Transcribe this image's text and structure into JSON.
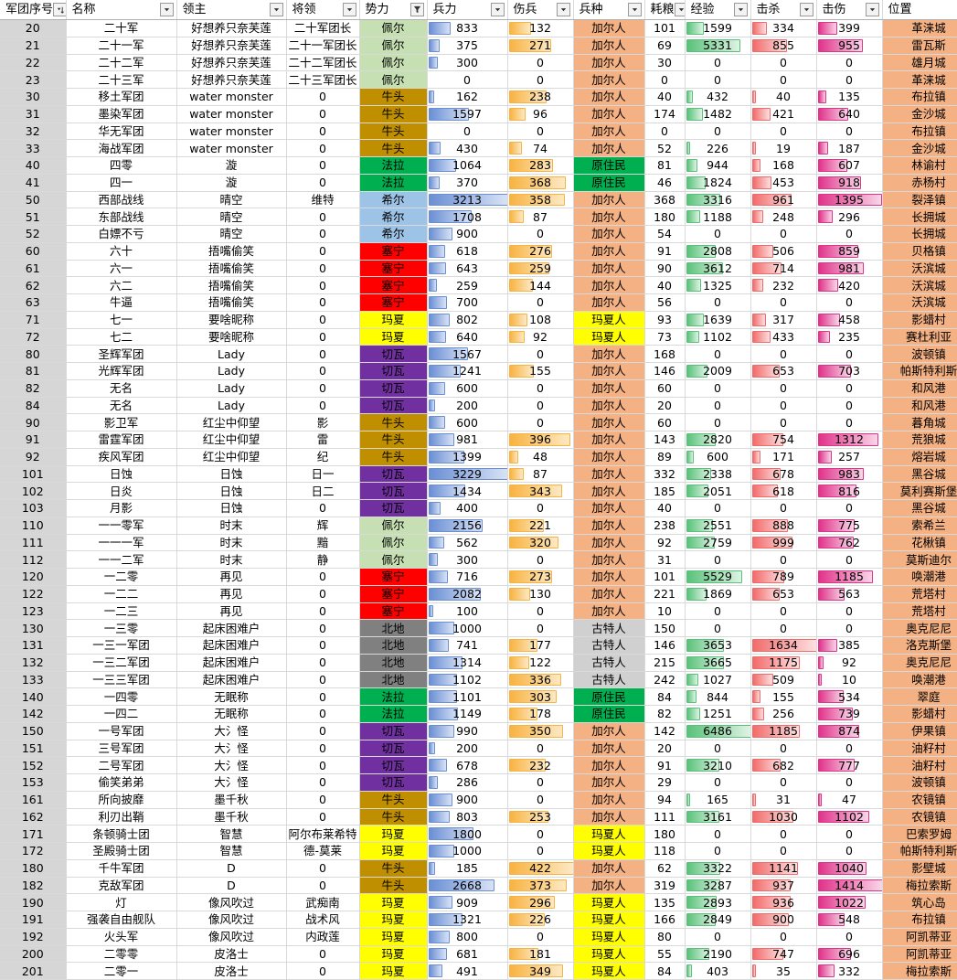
{
  "headers": [
    {
      "label": "军团序号",
      "filter": "sort"
    },
    {
      "label": "名称",
      "filter": "dropdown"
    },
    {
      "label": "领主",
      "filter": "dropdown"
    },
    {
      "label": "将领",
      "filter": "dropdown"
    },
    {
      "label": "势力",
      "filter": "funnel"
    },
    {
      "label": "兵力",
      "filter": "dropdown"
    },
    {
      "label": "伤兵",
      "filter": "dropdown"
    },
    {
      "label": "兵种",
      "filter": "dropdown"
    },
    {
      "label": "耗粮",
      "filter": "dropdown"
    },
    {
      "label": "经验",
      "filter": "dropdown"
    },
    {
      "label": "击杀",
      "filter": "dropdown"
    },
    {
      "label": "击伤",
      "filter": "dropdown"
    },
    {
      "label": "位置",
      "filter": "dropdown"
    }
  ],
  "colors": {
    "faction": {
      "佩尔": "#c6e0b4",
      "牛头": "#bf8f00",
      "法拉": "#00b050",
      "希尔": "#9dc3e6",
      "塞宁": "#ff0000",
      "玛夏": "#ffff00",
      "切瓦": "#7030a0",
      "北地": "#808080"
    },
    "troop": {
      "加尔人": "#f4b183",
      "原住民": "#00b050",
      "玛夏人": "#ffff00",
      "古特人": "#d0d0d0"
    }
  },
  "max": {
    "troops": 3229,
    "wounded": 422,
    "exp": 6486,
    "kills": 1634,
    "injured": 1414
  },
  "rows": [
    [
      "20",
      "二十军",
      "好想养只奈芙莲",
      "二十军团长",
      "佩尔",
      "833",
      "132",
      "加尔人",
      "101",
      "1599",
      "334",
      "399",
      "革涞城"
    ],
    [
      "21",
      "二十一军",
      "好想养只奈芙莲",
      "二十一军团长",
      "佩尔",
      "375",
      "271",
      "加尔人",
      "69",
      "5331",
      "855",
      "955",
      "雷瓦斯"
    ],
    [
      "22",
      "二十二军",
      "好想养只奈芙莲",
      "二十二军团长",
      "佩尔",
      "300",
      "0",
      "加尔人",
      "30",
      "0",
      "0",
      "0",
      "雄月城"
    ],
    [
      "23",
      "二十三军",
      "好想养只奈芙莲",
      "二十三军团长",
      "佩尔",
      "0",
      "0",
      "加尔人",
      "0",
      "0",
      "0",
      "0",
      "革涞城"
    ],
    [
      "30",
      "移土军团",
      "water monster",
      "0",
      "牛头",
      "162",
      "238",
      "加尔人",
      "40",
      "432",
      "40",
      "135",
      "布拉镇"
    ],
    [
      "31",
      "墨染军团",
      "water monster",
      "0",
      "牛头",
      "1597",
      "96",
      "加尔人",
      "174",
      "1482",
      "421",
      "640",
      "金沙城"
    ],
    [
      "32",
      "华无军团",
      "water monster",
      "0",
      "牛头",
      "0",
      "0",
      "加尔人",
      "0",
      "0",
      "0",
      "0",
      "布拉镇"
    ],
    [
      "33",
      "海战军团",
      "water monster",
      "0",
      "牛头",
      "430",
      "74",
      "加尔人",
      "52",
      "226",
      "19",
      "187",
      "金沙城"
    ],
    [
      "40",
      "四零",
      "漩",
      "0",
      "法拉",
      "1064",
      "283",
      "原住民",
      "81",
      "944",
      "168",
      "607",
      "林谕村"
    ],
    [
      "41",
      "四一",
      "漩",
      "0",
      "法拉",
      "370",
      "368",
      "原住民",
      "46",
      "1824",
      "453",
      "918",
      "赤杨村"
    ],
    [
      "50",
      "西部战线",
      "晴空",
      "维特",
      "希尔",
      "3213",
      "358",
      "加尔人",
      "368",
      "3316",
      "961",
      "1395",
      "裂泽镇"
    ],
    [
      "51",
      "东部战线",
      "晴空",
      "0",
      "希尔",
      "1708",
      "87",
      "加尔人",
      "180",
      "1188",
      "248",
      "296",
      "长拥城"
    ],
    [
      "52",
      "白嫖不亏",
      "晴空",
      "0",
      "希尔",
      "900",
      "0",
      "加尔人",
      "54",
      "0",
      "0",
      "0",
      "长拥城"
    ],
    [
      "60",
      "六十",
      "捂嘴偷笑",
      "0",
      "塞宁",
      "618",
      "276",
      "加尔人",
      "91",
      "2808",
      "506",
      "859",
      "贝格镇"
    ],
    [
      "61",
      "六一",
      "捂嘴偷笑",
      "0",
      "塞宁",
      "643",
      "259",
      "加尔人",
      "90",
      "3612",
      "714",
      "981",
      "沃滨城"
    ],
    [
      "62",
      "六二",
      "捂嘴偷笑",
      "0",
      "塞宁",
      "259",
      "144",
      "加尔人",
      "40",
      "1325",
      "232",
      "420",
      "沃滨城"
    ],
    [
      "63",
      "牛逼",
      "捂嘴偷笑",
      "0",
      "塞宁",
      "700",
      "0",
      "加尔人",
      "56",
      "0",
      "0",
      "0",
      "沃滨城"
    ],
    [
      "71",
      "七一",
      "要啥昵称",
      "0",
      "玛夏",
      "802",
      "108",
      "玛夏人",
      "93",
      "1639",
      "317",
      "458",
      "影蜡村"
    ],
    [
      "72",
      "七二",
      "要啥昵称",
      "0",
      "玛夏",
      "640",
      "92",
      "玛夏人",
      "73",
      "1102",
      "433",
      "235",
      "赛杜利亚"
    ],
    [
      "80",
      "圣辉军团",
      "Lady",
      "0",
      "切瓦",
      "1567",
      "0",
      "加尔人",
      "168",
      "0",
      "0",
      "0",
      "波顿镇"
    ],
    [
      "81",
      "光辉军团",
      "Lady",
      "0",
      "切瓦",
      "1241",
      "155",
      "加尔人",
      "146",
      "2009",
      "653",
      "703",
      "帕斯特利斯"
    ],
    [
      "82",
      "无名",
      "Lady",
      "0",
      "切瓦",
      "600",
      "0",
      "加尔人",
      "60",
      "0",
      "0",
      "0",
      "和风港"
    ],
    [
      "84",
      "无名",
      "Lady",
      "0",
      "切瓦",
      "200",
      "0",
      "加尔人",
      "20",
      "0",
      "0",
      "0",
      "和风港"
    ],
    [
      "90",
      "影卫军",
      "红尘中仰望",
      "影",
      "牛头",
      "600",
      "0",
      "加尔人",
      "60",
      "0",
      "0",
      "0",
      "暮角城"
    ],
    [
      "91",
      "雷霆军团",
      "红尘中仰望",
      "雷",
      "牛头",
      "981",
      "396",
      "加尔人",
      "143",
      "2820",
      "754",
      "1312",
      "荒狼城"
    ],
    [
      "92",
      "疾风军团",
      "红尘中仰望",
      "纪",
      "牛头",
      "1399",
      "48",
      "加尔人",
      "89",
      "600",
      "171",
      "257",
      "熔岩城"
    ],
    [
      "101",
      "日蚀",
      "日蚀",
      "日一",
      "切瓦",
      "3229",
      "87",
      "加尔人",
      "332",
      "2338",
      "678",
      "983",
      "黑谷城"
    ],
    [
      "102",
      "日炎",
      "日蚀",
      "日二",
      "切瓦",
      "1434",
      "343",
      "加尔人",
      "185",
      "2051",
      "618",
      "816",
      "莫利赛斯堡"
    ],
    [
      "103",
      "月影",
      "日蚀",
      "0",
      "切瓦",
      "400",
      "0",
      "加尔人",
      "40",
      "0",
      "0",
      "0",
      "黑谷城"
    ],
    [
      "110",
      "一一零军",
      "时末",
      "辉",
      "佩尔",
      "2156",
      "221",
      "加尔人",
      "238",
      "2551",
      "888",
      "775",
      "索希兰"
    ],
    [
      "111",
      "一一一军",
      "时末",
      "黯",
      "佩尔",
      "562",
      "320",
      "加尔人",
      "92",
      "2759",
      "999",
      "762",
      "花楸镇"
    ],
    [
      "112",
      "一一二军",
      "时末",
      "静",
      "佩尔",
      "300",
      "0",
      "加尔人",
      "31",
      "0",
      "0",
      "0",
      "莫斯迪尔"
    ],
    [
      "120",
      "一二零",
      "再见",
      "0",
      "塞宁",
      "716",
      "273",
      "加尔人",
      "101",
      "5529",
      "789",
      "1185",
      "唤潮港"
    ],
    [
      "122",
      "一二二",
      "再见",
      "0",
      "塞宁",
      "2082",
      "130",
      "加尔人",
      "221",
      "1869",
      "653",
      "563",
      "荒塔村"
    ],
    [
      "123",
      "一二三",
      "再见",
      "0",
      "塞宁",
      "100",
      "0",
      "加尔人",
      "10",
      "0",
      "0",
      "0",
      "荒塔村"
    ],
    [
      "130",
      "一三零",
      "起床困难户",
      "0",
      "北地",
      "1000",
      "0",
      "古特人",
      "150",
      "0",
      "0",
      "0",
      "奥克尼尼"
    ],
    [
      "131",
      "一三一军团",
      "起床困难户",
      "0",
      "北地",
      "741",
      "177",
      "古特人",
      "146",
      "3653",
      "1634",
      "385",
      "洛克斯堡"
    ],
    [
      "132",
      "一三二军团",
      "起床困难户",
      "0",
      "北地",
      "1314",
      "122",
      "古特人",
      "215",
      "3665",
      "1175",
      "92",
      "奥克尼尼"
    ],
    [
      "133",
      "一三三军团",
      "起床困难户",
      "0",
      "北地",
      "1102",
      "336",
      "古特人",
      "242",
      "1027",
      "509",
      "10",
      "唤潮港"
    ],
    [
      "140",
      "一四零",
      "无眠称",
      "0",
      "法拉",
      "1101",
      "303",
      "原住民",
      "84",
      "844",
      "155",
      "534",
      "翠庭"
    ],
    [
      "142",
      "一四二",
      "无眠称",
      "0",
      "法拉",
      "1149",
      "178",
      "原住民",
      "82",
      "1251",
      "256",
      "739",
      "影蜡村"
    ],
    [
      "150",
      "一号军团",
      "大氵怪",
      "0",
      "切瓦",
      "990",
      "350",
      "加尔人",
      "142",
      "6486",
      "1185",
      "874",
      "伊果镇"
    ],
    [
      "151",
      "三号军团",
      "大氵怪",
      "0",
      "切瓦",
      "200",
      "0",
      "加尔人",
      "20",
      "0",
      "0",
      "0",
      "油籽村"
    ],
    [
      "152",
      "二号军团",
      "大氵怪",
      "0",
      "切瓦",
      "678",
      "232",
      "加尔人",
      "91",
      "3210",
      "682",
      "777",
      "油籽村"
    ],
    [
      "153",
      "偷笑弟弟",
      "大氵怪",
      "0",
      "切瓦",
      "286",
      "0",
      "加尔人",
      "29",
      "0",
      "0",
      "0",
      "波顿镇"
    ],
    [
      "161",
      "所向披靡",
      "墨千秋",
      "0",
      "牛头",
      "900",
      "0",
      "加尔人",
      "94",
      "165",
      "31",
      "47",
      "农镜镇"
    ],
    [
      "162",
      "利刃出鞘",
      "墨千秋",
      "0",
      "牛头",
      "803",
      "253",
      "加尔人",
      "111",
      "3161",
      "1030",
      "1102",
      "农镜镇"
    ],
    [
      "171",
      "条顿骑士团",
      "智慧",
      "阿尔布莱希特",
      "玛夏",
      "1800",
      "0",
      "玛夏人",
      "180",
      "0",
      "0",
      "0",
      "巴索罗姆"
    ],
    [
      "172",
      "圣殿骑士团",
      "智慧",
      "德-莫莱",
      "玛夏",
      "1000",
      "0",
      "玛夏人",
      "118",
      "0",
      "0",
      "0",
      "帕斯特利斯"
    ],
    [
      "180",
      "千牛军团",
      "D",
      "0",
      "牛头",
      "185",
      "422",
      "加尔人",
      "62",
      "3322",
      "1141",
      "1040",
      "影壁城"
    ],
    [
      "182",
      "克敌军团",
      "D",
      "0",
      "牛头",
      "2668",
      "373",
      "加尔人",
      "319",
      "3287",
      "937",
      "1414",
      "梅拉索斯"
    ],
    [
      "190",
      "灯",
      "像风吹过",
      "武痴南",
      "玛夏",
      "909",
      "296",
      "玛夏人",
      "135",
      "2893",
      "936",
      "1022",
      "筑心岛"
    ],
    [
      "191",
      "强袭自由舰队",
      "像风吹过",
      "战术风",
      "玛夏",
      "1321",
      "226",
      "玛夏人",
      "166",
      "2849",
      "900",
      "548",
      "布拉镇"
    ],
    [
      "192",
      "火头军",
      "像风吹过",
      "内政莲",
      "玛夏",
      "800",
      "0",
      "玛夏人",
      "80",
      "0",
      "0",
      "0",
      "阿凯蒂亚"
    ],
    [
      "200",
      "二零零",
      "皮洛士",
      "0",
      "玛夏",
      "681",
      "181",
      "玛夏人",
      "55",
      "2190",
      "747",
      "696",
      "阿凯蒂亚"
    ],
    [
      "201",
      "二零一",
      "皮洛士",
      "0",
      "玛夏",
      "491",
      "349",
      "玛夏人",
      "84",
      "403",
      "35",
      "332",
      "梅拉索斯"
    ]
  ]
}
